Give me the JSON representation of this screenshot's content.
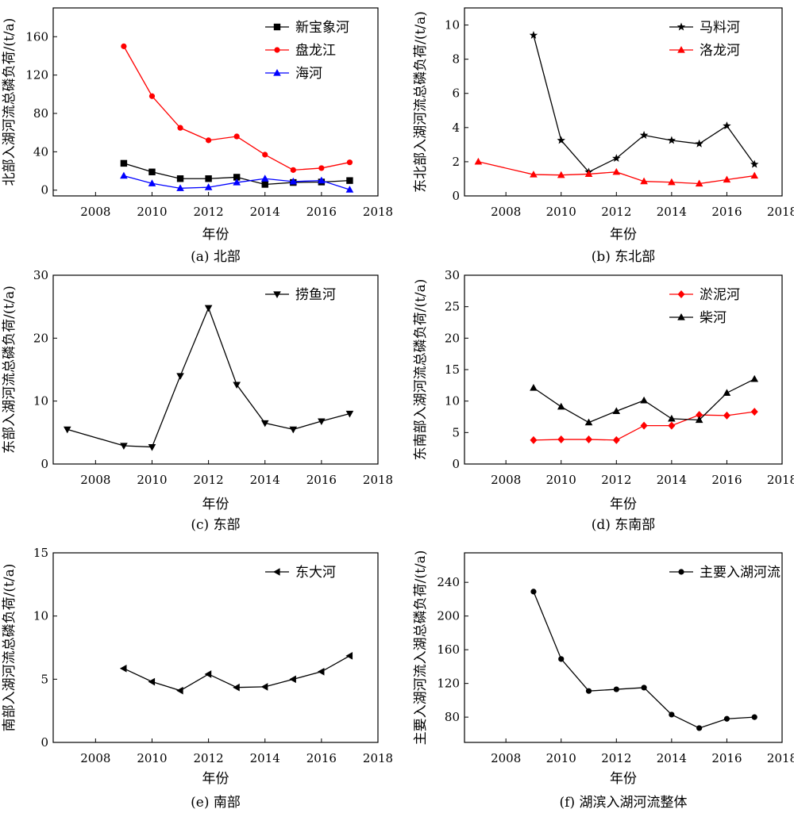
{
  "chart_data": [
    {
      "type": "line",
      "caption": "(a) 北部",
      "xlabel": "年份",
      "ylabel": "北部入湖河流总磷负荷/(t/a)",
      "xlim": [
        2006.5,
        2018
      ],
      "ylim": [
        -6,
        190
      ],
      "xticks": [
        2008,
        2010,
        2012,
        2014,
        2016,
        2018
      ],
      "yticks": [
        0,
        40,
        80,
        120,
        160
      ],
      "legend_position": "top-right",
      "series": [
        {
          "name": "新宝象河",
          "color": "#000000",
          "marker": "square",
          "x": [
            2009,
            2010,
            2011,
            2012,
            2013,
            2014,
            2015,
            2016,
            2017
          ],
          "y": [
            28,
            19,
            12,
            12,
            13.5,
            6,
            8,
            8.5,
            10
          ]
        },
        {
          "name": "盘龙江",
          "color": "#ff0000",
          "marker": "circle",
          "x": [
            2009,
            2010,
            2011,
            2012,
            2013,
            2014,
            2015,
            2016,
            2017
          ],
          "y": [
            150,
            98,
            65,
            52,
            56,
            37,
            21,
            23,
            29
          ]
        },
        {
          "name": "海河",
          "color": "#0000ff",
          "marker": "triangle-up",
          "x": [
            2009,
            2010,
            2011,
            2012,
            2013,
            2014,
            2015,
            2016,
            2017
          ],
          "y": [
            15,
            7,
            2,
            3,
            8,
            12,
            9,
            10,
            0.5
          ]
        }
      ]
    },
    {
      "type": "line",
      "caption": "(b) 东北部",
      "xlabel": "年份",
      "ylabel": "东北部入湖河流总磷负荷/(t/a)",
      "xlim": [
        2006.5,
        2018
      ],
      "ylim": [
        0,
        11
      ],
      "xticks": [
        2008,
        2010,
        2012,
        2014,
        2016,
        2018
      ],
      "yticks": [
        0,
        2,
        4,
        6,
        8,
        10
      ],
      "legend_position": "top-right",
      "series": [
        {
          "name": "马料河",
          "color": "#000000",
          "marker": "star",
          "x": [
            2009,
            2010,
            2011,
            2012,
            2013,
            2014,
            2015,
            2016,
            2017
          ],
          "y": [
            9.4,
            3.25,
            1.4,
            2.2,
            3.55,
            3.25,
            3.05,
            4.1,
            1.85
          ]
        },
        {
          "name": "洛龙河",
          "color": "#ff0000",
          "marker": "triangle-up",
          "x": [
            2007,
            2009,
            2010,
            2011,
            2012,
            2013,
            2014,
            2015,
            2016,
            2017
          ],
          "y": [
            2.0,
            1.25,
            1.22,
            1.28,
            1.4,
            0.85,
            0.8,
            0.72,
            0.95,
            1.18
          ]
        }
      ]
    },
    {
      "type": "line",
      "caption": "(c) 东部",
      "xlabel": "年份",
      "ylabel": "东部入湖河流总磷负荷/(t/a)",
      "xlim": [
        2006.5,
        2018
      ],
      "ylim": [
        0,
        30
      ],
      "xticks": [
        2008,
        2010,
        2012,
        2014,
        2016,
        2018
      ],
      "yticks": [
        0,
        10,
        20,
        30
      ],
      "legend_position": "top-right",
      "series": [
        {
          "name": "捞鱼河",
          "color": "#000000",
          "marker": "triangle-down",
          "x": [
            2007,
            2009,
            2010,
            2011,
            2012,
            2013,
            2014,
            2015,
            2016,
            2017
          ],
          "y": [
            5.5,
            2.9,
            2.7,
            14,
            24.8,
            12.6,
            6.5,
            5.5,
            6.8,
            8
          ]
        }
      ]
    },
    {
      "type": "line",
      "caption": "(d) 东南部",
      "xlabel": "年份",
      "ylabel": "东南部入湖河流总磷负荷/(t/a)",
      "xlim": [
        2006.5,
        2018
      ],
      "ylim": [
        0,
        30
      ],
      "xticks": [
        2008,
        2010,
        2012,
        2014,
        2016,
        2018
      ],
      "yticks": [
        0,
        5,
        10,
        15,
        20,
        25,
        30
      ],
      "legend_position": "top-right",
      "series": [
        {
          "name": "淤泥河",
          "color": "#ff0000",
          "marker": "diamond",
          "x": [
            2009,
            2010,
            2011,
            2012,
            2013,
            2014,
            2015,
            2016,
            2017
          ],
          "y": [
            3.8,
            3.9,
            3.9,
            3.8,
            6.1,
            6.1,
            7.8,
            7.7,
            8.3
          ]
        },
        {
          "name": "柴河",
          "color": "#000000",
          "marker": "triangle-up",
          "x": [
            2009,
            2010,
            2011,
            2012,
            2013,
            2014,
            2015,
            2016,
            2017
          ],
          "y": [
            12.1,
            9.1,
            6.6,
            8.4,
            10.1,
            7.2,
            7.0,
            11.3,
            13.5
          ]
        }
      ]
    },
    {
      "type": "line",
      "caption": "(e) 南部",
      "xlabel": "年份",
      "ylabel": "南部入湖河流总磷负荷/(t/a)",
      "xlim": [
        2006.5,
        2018
      ],
      "ylim": [
        0,
        15
      ],
      "xticks": [
        2008,
        2010,
        2012,
        2014,
        2016,
        2018
      ],
      "yticks": [
        0,
        5,
        10,
        15
      ],
      "legend_position": "top-right",
      "series": [
        {
          "name": "东大河",
          "color": "#000000",
          "marker": "triangle-left",
          "x": [
            2009,
            2010,
            2011,
            2012,
            2013,
            2014,
            2015,
            2016,
            2017
          ],
          "y": [
            5.85,
            4.8,
            4.1,
            5.4,
            4.35,
            4.4,
            5.0,
            5.6,
            6.85
          ]
        }
      ]
    },
    {
      "type": "line",
      "caption": "(f) 湖滨入湖河流整体",
      "xlabel": "年份",
      "ylabel": "主要入湖河流入湖总磷负荷/(t/a)",
      "xlim": [
        2006.5,
        2018
      ],
      "ylim": [
        50,
        275
      ],
      "xticks": [
        2008,
        2010,
        2012,
        2014,
        2016,
        2018
      ],
      "yticks": [
        80,
        120,
        160,
        200,
        240
      ],
      "legend_position": "top-right",
      "series": [
        {
          "name": "主要入湖河流",
          "color": "#000000",
          "marker": "circle",
          "x": [
            2009,
            2010,
            2011,
            2012,
            2013,
            2014,
            2015,
            2016,
            2017
          ],
          "y": [
            229,
            149,
            111,
            113,
            115,
            83,
            67,
            78,
            80
          ]
        }
      ]
    }
  ]
}
